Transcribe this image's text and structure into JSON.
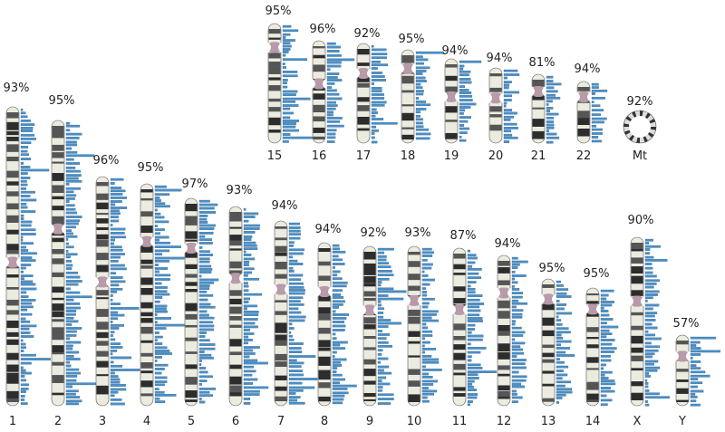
{
  "chromosomes": [
    {
      "label": "1",
      "percent": "93%"
    },
    {
      "label": "2",
      "percent": "95%"
    },
    {
      "label": "3",
      "percent": "96%"
    },
    {
      "label": "4",
      "percent": "95%"
    },
    {
      "label": "5",
      "percent": "97%"
    },
    {
      "label": "6",
      "percent": "93%"
    },
    {
      "label": "7",
      "percent": "94%"
    },
    {
      "label": "8",
      "percent": "94%"
    },
    {
      "label": "9",
      "percent": "92%"
    },
    {
      "label": "10",
      "percent": "93%"
    },
    {
      "label": "11",
      "percent": "87%"
    },
    {
      "label": "12",
      "percent": "94%"
    },
    {
      "label": "13",
      "percent": "95%"
    },
    {
      "label": "14",
      "percent": "95%"
    },
    {
      "label": "X",
      "percent": "90%"
    },
    {
      "label": "Y",
      "percent": "57%"
    },
    {
      "label": "15",
      "percent": "95%"
    },
    {
      "label": "16",
      "percent": "96%"
    },
    {
      "label": "17",
      "percent": "92%"
    },
    {
      "label": "18",
      "percent": "95%"
    },
    {
      "label": "19",
      "percent": "94%"
    },
    {
      "label": "20",
      "percent": "94%"
    },
    {
      "label": "21",
      "percent": "81%"
    },
    {
      "label": "22",
      "percent": "94%"
    },
    {
      "label": "Mt",
      "percent": "92%"
    }
  ]
}
